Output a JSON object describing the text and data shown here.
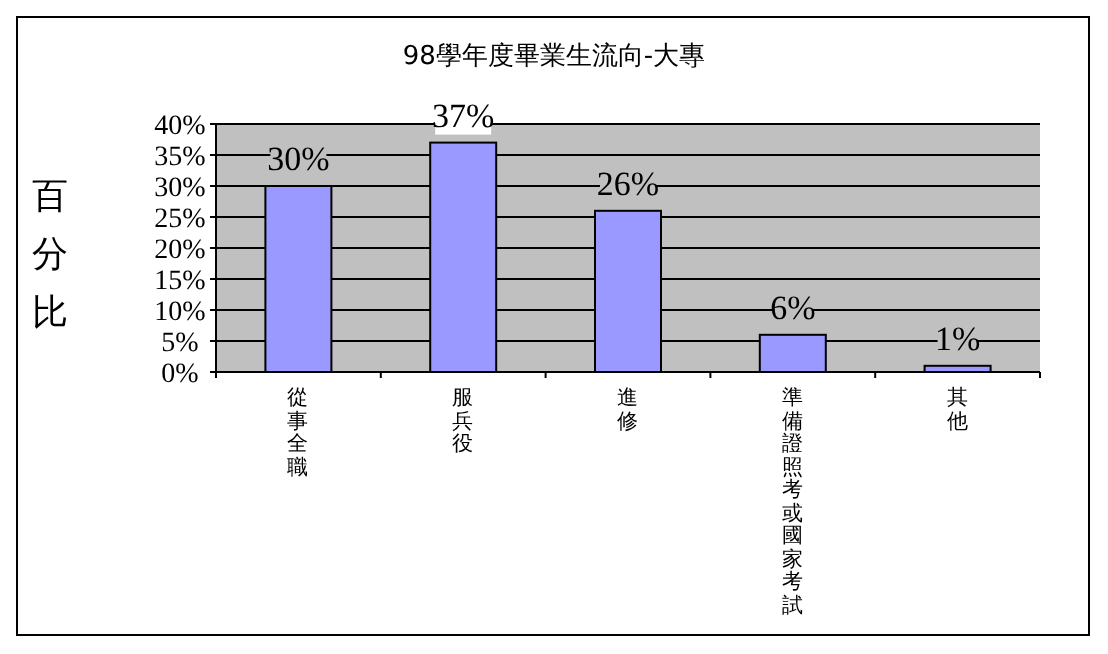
{
  "chart_data": {
    "type": "bar",
    "title": "98學年度畢業生流向-大專",
    "ylabel": "百分比",
    "categories": [
      "從事全職",
      "服兵役",
      "進修",
      "準備證照考或國家考試",
      "其他"
    ],
    "values": [
      30,
      37,
      26,
      6,
      1
    ],
    "value_labels": [
      "30%",
      "37%",
      "26%",
      "6%",
      "1%"
    ],
    "color": "#9999ff",
    "ylim": [
      0,
      40
    ],
    "yticks": [
      {
        "value": 0,
        "label": "0%"
      },
      {
        "value": 5,
        "label": "5%"
      },
      {
        "value": 10,
        "label": "10%"
      },
      {
        "value": 15,
        "label": "15%"
      },
      {
        "value": 20,
        "label": "20%"
      },
      {
        "value": 25,
        "label": "25%"
      },
      {
        "value": 30,
        "label": "30%"
      },
      {
        "value": 35,
        "label": "35%"
      },
      {
        "value": 40,
        "label": "40%"
      }
    ],
    "grid": "y"
  }
}
